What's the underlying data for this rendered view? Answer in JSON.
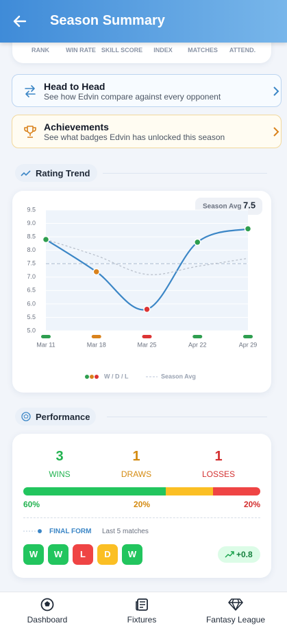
{
  "header": {
    "title": "Season Summary"
  },
  "stats": {
    "labels": [
      "RANK",
      "WIN RATE",
      "SKILL SCORE",
      "INDEX",
      "MATCHES",
      "ATTEND."
    ]
  },
  "links": [
    {
      "title": "Head to Head",
      "subtitle": "See how Edvin compare against every opponent"
    },
    {
      "title": "Achievements",
      "subtitle": "See what badges Edvin has unlocked this season"
    }
  ],
  "chart_data": {
    "type": "line",
    "title": "Rating Trend",
    "categories": [
      "Mar 11",
      "Mar 18",
      "Mar 25",
      "Apr 22",
      "Apr 29"
    ],
    "series": [
      {
        "name": "W / D / L",
        "color": "#3b86c6",
        "values": [
          8.4,
          7.2,
          5.8,
          8.3,
          8.8
        ],
        "point_colors": [
          "#2e9e4f",
          "#d9821c",
          "#dc3434",
          "#2e9e4f",
          "#2e9e4f"
        ]
      },
      {
        "color": "#b9c0cb",
        "values": [
          8.4,
          7.8,
          7.1,
          7.4,
          7.7
        ]
      }
    ],
    "season_avg": {
      "label": "Season Avg",
      "value": 7.5,
      "color": "#b8c6d8"
    },
    "ylim": [
      5,
      9.5
    ],
    "yticks": [
      {
        "value": 5,
        "label": "5.0"
      },
      {
        "value": 5.5,
        "label": "5.5"
      },
      {
        "value": 6,
        "label": "6.0"
      },
      {
        "value": 6.5,
        "label": "6.5"
      },
      {
        "value": 7,
        "label": "7.0"
      },
      {
        "value": 7.5,
        "label": "7.5"
      },
      {
        "value": 8,
        "label": "8.0"
      },
      {
        "value": 8.5,
        "label": "8.5"
      },
      {
        "value": 9,
        "label": "9.0"
      },
      {
        "value": 9.5,
        "label": "9.5"
      }
    ],
    "grid": true
  },
  "performance": {
    "title": "Performance",
    "results": [
      {
        "count": 3,
        "label": "WINS",
        "pct": 60,
        "pct_label": "60%",
        "color": "#22b350",
        "bar_color": "#22c55e"
      },
      {
        "count": 1,
        "label": "DRAWS",
        "pct": 20,
        "pct_label": "20%",
        "color": "#d48a10",
        "bar_color": "#fbbf24"
      },
      {
        "count": 1,
        "label": "LOSSES",
        "pct": 20,
        "pct_label": "20%",
        "color": "#d32f2f",
        "bar_color": "#ef4444"
      }
    ],
    "form": {
      "title": "FINAL FORM",
      "subtitle": "Last 5 matches",
      "results": [
        "W",
        "W",
        "L",
        "D",
        "W"
      ],
      "colors": {
        "W": "#22c55e",
        "L": "#ef4444",
        "D": "#fbbf24"
      },
      "trend": "+0.8"
    }
  },
  "nav": [
    "Dashboard",
    "Fixtures",
    "Fantasy League"
  ]
}
